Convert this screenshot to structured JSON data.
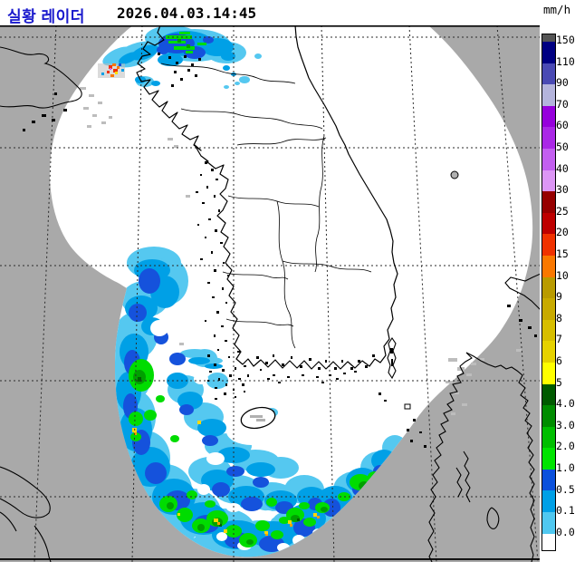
{
  "header": {
    "title": "실황 레이더",
    "timestamp": "2026.04.03.14:45"
  },
  "legend": {
    "unit": "mm/h",
    "segments": [
      {
        "label": "",
        "color": "#555555"
      },
      {
        "label": "150",
        "color": "#000082"
      },
      {
        "label": "110",
        "color": "#4A4AB4"
      },
      {
        "label": "90",
        "color": "#B4B4DC"
      },
      {
        "label": "70",
        "color": "#9600DC"
      },
      {
        "label": "60",
        "color": "#AA28E6"
      },
      {
        "label": "50",
        "color": "#C35FF0"
      },
      {
        "label": "40",
        "color": "#DC96F5"
      },
      {
        "label": "30",
        "color": "#960000"
      },
      {
        "label": "25",
        "color": "#BE0000"
      },
      {
        "label": "20",
        "color": "#F03200"
      },
      {
        "label": "15",
        "color": "#FA7800"
      },
      {
        "label": "10",
        "color": "#B99B00"
      },
      {
        "label": "9",
        "color": "#C8AA00"
      },
      {
        "label": "8",
        "color": "#D7BE00"
      },
      {
        "label": "7",
        "color": "#E6D200"
      },
      {
        "label": "6",
        "color": "#FFFF00"
      },
      {
        "label": "5",
        "color": "#005A00"
      },
      {
        "label": "4.0",
        "color": "#008C00"
      },
      {
        "label": "3.0",
        "color": "#00BE00"
      },
      {
        "label": "2.0",
        "color": "#00E400"
      },
      {
        "label": "1.0",
        "color": "#0A50DC"
      },
      {
        "label": "0.5",
        "color": "#00A0E6"
      },
      {
        "label": "0.1",
        "color": "#50C8F0"
      },
      {
        "label": "0.0",
        "color": "#FFFFFF"
      }
    ]
  },
  "map": {
    "colors": {
      "outside_coverage": "#A9A9A9",
      "coverage": "#FFFFFF",
      "coastline": "#000000",
      "grid": "#2A2A2A",
      "clutter": "#BDBDBD"
    }
  }
}
